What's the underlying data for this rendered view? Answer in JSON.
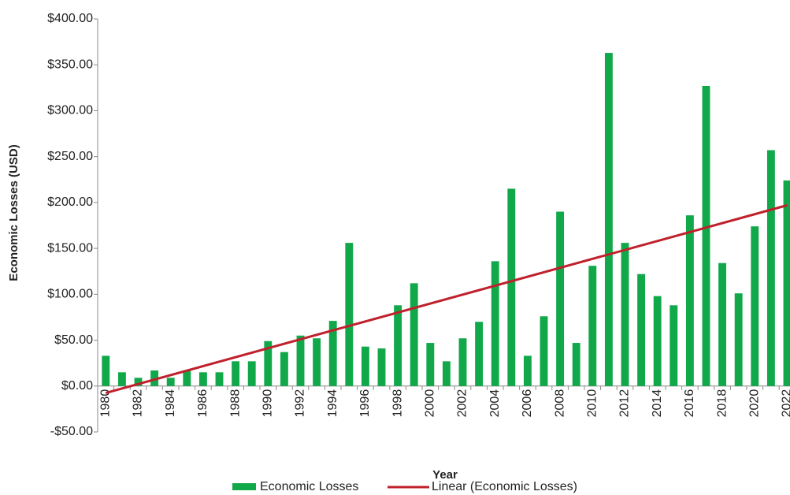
{
  "chart_data": {
    "type": "bar",
    "x_label": "Year",
    "y_label": "Economic Losses (USD)",
    "categories": [
      "1980",
      null,
      "1982",
      null,
      "1984",
      null,
      "1986",
      null,
      "1988",
      null,
      "1990",
      null,
      "1992",
      null,
      "1994",
      null,
      "1996",
      null,
      "1998",
      null,
      "2000",
      null,
      "2002",
      null,
      "2004",
      null,
      "2006",
      null,
      "2008",
      null,
      "2010",
      null,
      "2012",
      null,
      "2014",
      null,
      "2016",
      null,
      "2018",
      null,
      "2020",
      null,
      "2022"
    ],
    "series": [
      {
        "name": "Economic Losses",
        "color": "#11a84a",
        "values": [
          33,
          15,
          9,
          17,
          9,
          17,
          15,
          15,
          27,
          27,
          49,
          37,
          55,
          52,
          71,
          156,
          43,
          41,
          88,
          112,
          47,
          27,
          52,
          70,
          136,
          215,
          33,
          76,
          190,
          47,
          131,
          363,
          156,
          122,
          98,
          88,
          186,
          327,
          134,
          101,
          174,
          257,
          224
        ]
      }
    ],
    "trendline": {
      "name": "Linear (Economic Losses)",
      "color": "#c0202c",
      "values": [
        -7.5,
        197
      ]
    },
    "ylim": [
      -50,
      400
    ],
    "yticks": [
      {
        "value": -50,
        "label": "-$50.00"
      },
      {
        "value": 0,
        "label": "$0.00"
      },
      {
        "value": 50,
        "label": "$50.00"
      },
      {
        "value": 100,
        "label": "$100.00"
      },
      {
        "value": 150,
        "label": "$150.00"
      },
      {
        "value": 200,
        "label": "$200.00"
      },
      {
        "value": 250,
        "label": "$250.00"
      },
      {
        "value": 300,
        "label": "$300.00"
      },
      {
        "value": 350,
        "label": "$350.00"
      },
      {
        "value": 400,
        "label": "$400.00"
      }
    ],
    "grid": false
  }
}
